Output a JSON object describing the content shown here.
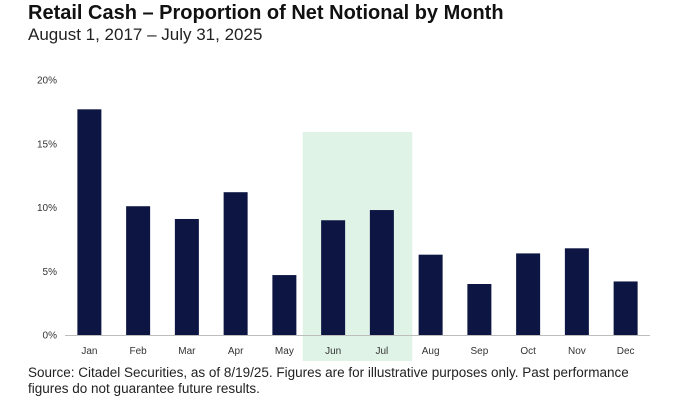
{
  "title": "Retail Cash – Proportion of Net Notional by Month",
  "subtitle": "August 1, 2017 – July 31, 2025",
  "source": "Source: Citadel Securities, as of 8/19/25. Figures are for illustrative purposes only. Past performance figures do not guarantee future results.",
  "colors": {
    "bar": "#0d1642",
    "highlight": "#dff3e7",
    "axis": "#bdbdbd"
  },
  "chart_data": {
    "type": "bar",
    "categories": [
      "Jan",
      "Feb",
      "Mar",
      "Apr",
      "May",
      "Jun",
      "Jul",
      "Aug",
      "Sep",
      "Oct",
      "Nov",
      "Dec"
    ],
    "values": [
      17.7,
      10.1,
      9.1,
      11.2,
      4.7,
      9.0,
      9.8,
      6.3,
      4.0,
      6.4,
      6.8,
      4.2
    ],
    "unit": "%",
    "ylim": [
      0,
      20
    ],
    "yticks": [
      "0%",
      "5%",
      "10%",
      "15%",
      "20%"
    ],
    "highlighted_categories": [
      "Jun",
      "Jul"
    ],
    "grid": false,
    "legend": "none"
  }
}
